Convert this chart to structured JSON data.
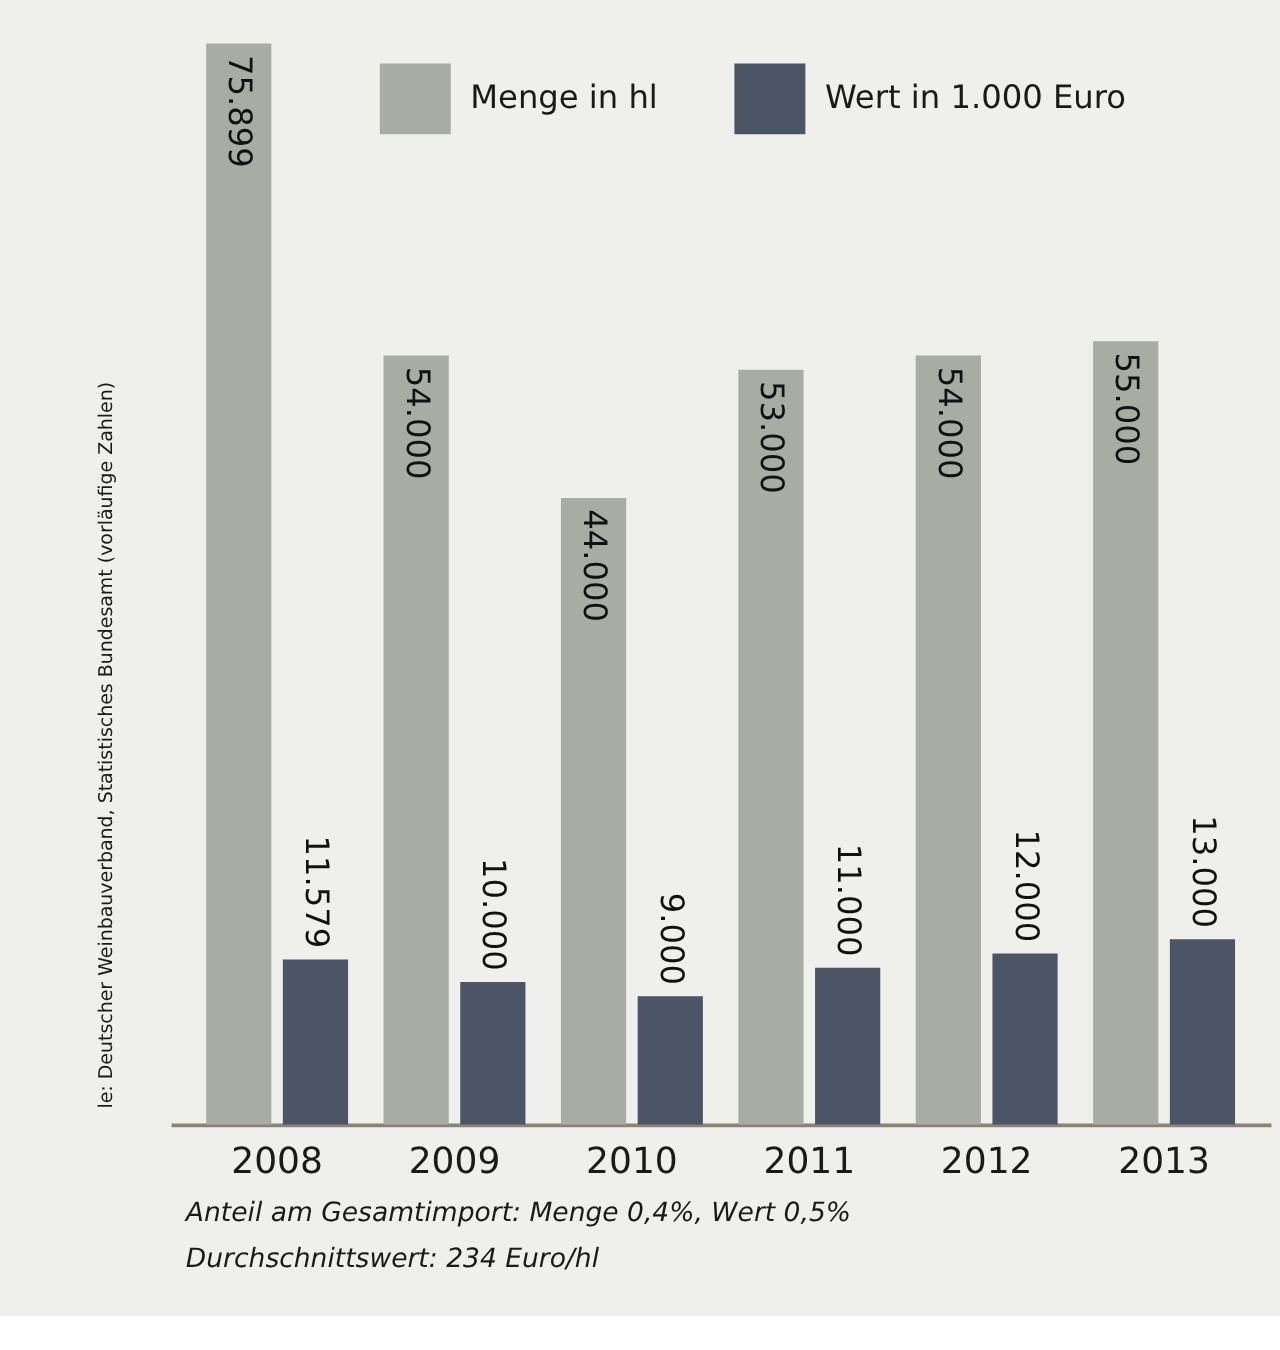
{
  "chart_data": {
    "type": "bar",
    "categories": [
      "2008",
      "2009",
      "2010",
      "2011",
      "2012",
      "2013"
    ],
    "series": [
      {
        "name": "Menge in hl",
        "color": "#a9aba5",
        "values": [
          75899,
          54000,
          44000,
          53000,
          54000,
          55000
        ],
        "value_labels": [
          "75.899",
          "54.000",
          "44.000",
          "53.000",
          "54.000",
          "55.000"
        ]
      },
      {
        "name": "Wert in 1.000 Euro",
        "color": "#4b5566",
        "values": [
          11579,
          10000,
          9000,
          11000,
          12000,
          13000
        ],
        "value_labels": [
          "11.579",
          "10.000",
          "9.000",
          "11.000",
          "12.000",
          "13.000"
        ]
      }
    ],
    "relative": false,
    "legend": "top",
    "grid": false,
    "annotations": [
      "Anteil am Gesamtimport: Menge 0,4%, Wert 0,5%",
      "Durchschnittswert: 234 Euro/hl",
      "le: Deutscher Weinbauverband, Statistisches Bundesamt (vorläufige Zahlen)"
    ]
  }
}
